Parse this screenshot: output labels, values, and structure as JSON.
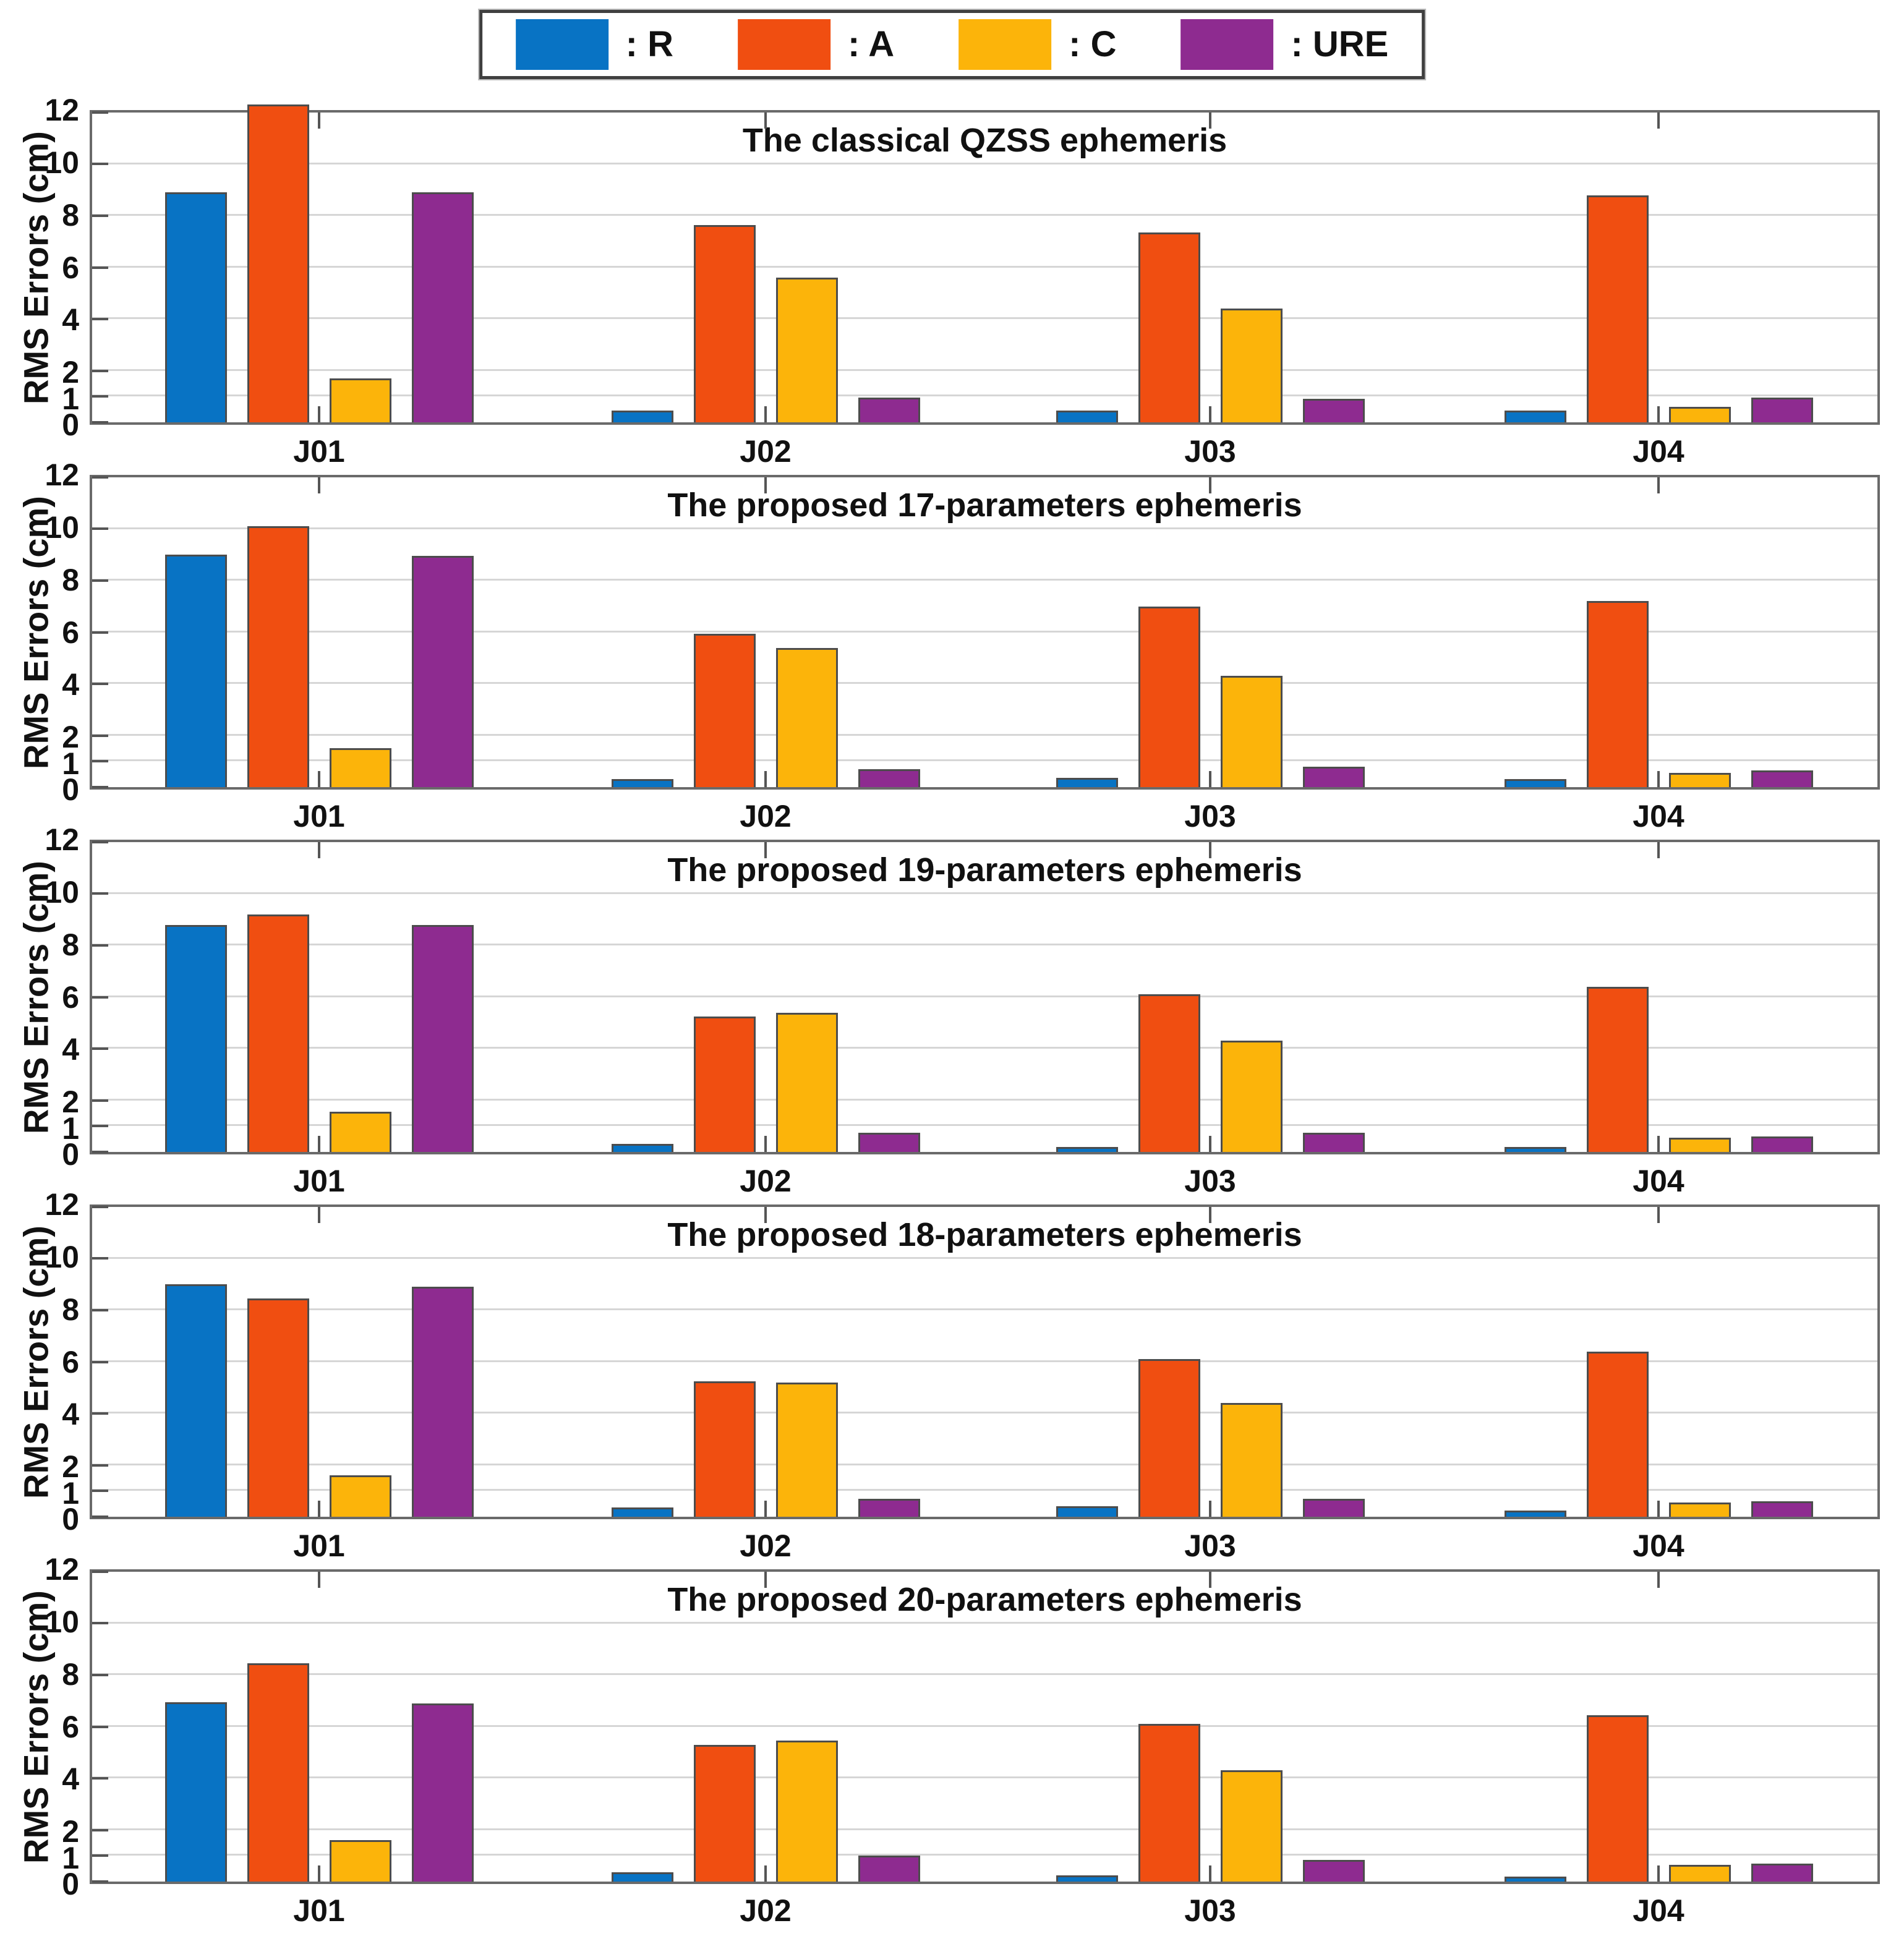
{
  "legend": {
    "items": [
      {
        "name": "R",
        "label": ": R",
        "color": "#0873C4"
      },
      {
        "name": "A",
        "label": ": A",
        "color": "#F04E11"
      },
      {
        "name": "C",
        "label": ": C",
        "color": "#FCB40A"
      },
      {
        "name": "URE",
        "label": ": URE",
        "color": "#8E2B90"
      }
    ]
  },
  "chart_data": [
    {
      "type": "bar",
      "title": "The classical QZSS ephemeris",
      "ylabel": "RMS Errors (cm)",
      "xlabel": "",
      "categories": [
        "J01",
        "J02",
        "J03",
        "J04"
      ],
      "ylim": [
        0,
        12
      ],
      "yticks": [
        0,
        1,
        2,
        4,
        6,
        8,
        10,
        12
      ],
      "grid": "horizontal",
      "legend_position": "top-outside",
      "series": [
        {
          "name": "R",
          "values": [
            8.9,
            0.45,
            0.45,
            0.45
          ]
        },
        {
          "name": "A",
          "values": [
            12.3,
            7.65,
            7.35,
            8.8
          ]
        },
        {
          "name": "C",
          "values": [
            1.7,
            5.6,
            4.4,
            0.6
          ]
        },
        {
          "name": "URE",
          "values": [
            8.9,
            0.95,
            0.9,
            0.95
          ]
        }
      ]
    },
    {
      "type": "bar",
      "title": "The proposed 17-parameters ephemeris",
      "ylabel": "RMS Errors (cm)",
      "xlabel": "",
      "categories": [
        "J01",
        "J02",
        "J03",
        "J04"
      ],
      "ylim": [
        0,
        12
      ],
      "yticks": [
        0,
        1,
        2,
        4,
        6,
        8,
        10,
        12
      ],
      "grid": "horizontal",
      "series": [
        {
          "name": "R",
          "values": [
            9.0,
            0.3,
            0.35,
            0.3
          ]
        },
        {
          "name": "A",
          "values": [
            10.1,
            5.95,
            7.0,
            7.2
          ]
        },
        {
          "name": "C",
          "values": [
            1.5,
            5.4,
            4.3,
            0.55
          ]
        },
        {
          "name": "URE",
          "values": [
            8.95,
            0.7,
            0.8,
            0.65
          ]
        }
      ]
    },
    {
      "type": "bar",
      "title": "The proposed 19-parameters ephemeris",
      "ylabel": "RMS Errors (cm)",
      "xlabel": "",
      "categories": [
        "J01",
        "J02",
        "J03",
        "J04"
      ],
      "ylim": [
        0,
        12
      ],
      "yticks": [
        0,
        1,
        2,
        4,
        6,
        8,
        10,
        12
      ],
      "grid": "horizontal",
      "series": [
        {
          "name": "R",
          "values": [
            8.8,
            0.3,
            0.2,
            0.2
          ]
        },
        {
          "name": "A",
          "values": [
            9.2,
            5.25,
            6.1,
            6.4
          ]
        },
        {
          "name": "C",
          "values": [
            1.55,
            5.4,
            4.3,
            0.55
          ]
        },
        {
          "name": "URE",
          "values": [
            8.8,
            0.75,
            0.75,
            0.6
          ]
        }
      ]
    },
    {
      "type": "bar",
      "title": "The proposed 18-parameters ephemeris",
      "ylabel": "RMS Errors (cm)",
      "xlabel": "",
      "categories": [
        "J01",
        "J02",
        "J03",
        "J04"
      ],
      "ylim": [
        0,
        12
      ],
      "yticks": [
        0,
        1,
        2,
        4,
        6,
        8,
        10,
        12
      ],
      "grid": "horizontal",
      "series": [
        {
          "name": "R",
          "values": [
            9.0,
            0.35,
            0.4,
            0.25
          ]
        },
        {
          "name": "A",
          "values": [
            8.45,
            5.25,
            6.1,
            6.4
          ]
        },
        {
          "name": "C",
          "values": [
            1.6,
            5.2,
            4.4,
            0.55
          ]
        },
        {
          "name": "URE",
          "values": [
            8.9,
            0.7,
            0.7,
            0.6
          ]
        }
      ]
    },
    {
      "type": "bar",
      "title": "The proposed 20-parameters ephemeris",
      "ylabel": "RMS Errors (cm)",
      "xlabel": "",
      "categories": [
        "J01",
        "J02",
        "J03",
        "J04"
      ],
      "ylim": [
        0,
        12
      ],
      "yticks": [
        0,
        1,
        2,
        4,
        6,
        8,
        10,
        12
      ],
      "grid": "horizontal",
      "series": [
        {
          "name": "R",
          "values": [
            6.95,
            0.35,
            0.25,
            0.2
          ]
        },
        {
          "name": "A",
          "values": [
            8.45,
            5.3,
            6.1,
            6.45
          ]
        },
        {
          "name": "C",
          "values": [
            1.6,
            5.45,
            4.3,
            0.65
          ]
        },
        {
          "name": "URE",
          "values": [
            6.9,
            1.0,
            0.85,
            0.7
          ]
        }
      ]
    }
  ]
}
